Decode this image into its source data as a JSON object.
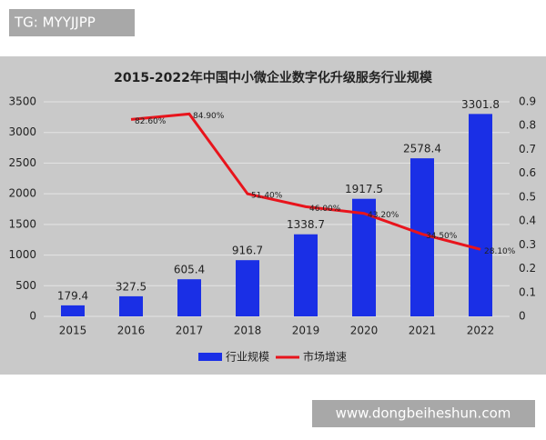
{
  "header_badge": "TG: MYYJJPP",
  "footer_badge": "www.dongbeiheshun.com",
  "chart_data": {
    "type": "bar",
    "title": "2015-2022年中国中小微企业数字化升级服务行业规模",
    "categories": [
      "2015",
      "2016",
      "2017",
      "2018",
      "2019",
      "2020",
      "2021",
      "2022"
    ],
    "series": [
      {
        "name": "行业规模",
        "type": "bar",
        "color": "#1a2fe6",
        "values": [
          179.4,
          327.5,
          605.4,
          916.7,
          1338.7,
          1917.5,
          2578.4,
          3301.8
        ]
      },
      {
        "name": "市场增速",
        "type": "line",
        "axis": "y2",
        "color": "#e8141c",
        "values": [
          null,
          0.826,
          0.849,
          0.514,
          0.46,
          0.432,
          0.345,
          0.281
        ],
        "value_labels": [
          null,
          "82.60%",
          "84.90%",
          "51.40%",
          "46.00%",
          "43.20%",
          "34.50%",
          "28.10%"
        ]
      }
    ],
    "ylim": [
      0,
      3500
    ],
    "yticks": [
      0,
      500,
      1000,
      1500,
      2000,
      2500,
      3000,
      3500
    ],
    "y2lim": [
      0,
      0.9
    ],
    "y2ticks": [
      0,
      0.1,
      0.2,
      0.3,
      0.4,
      0.5,
      0.6,
      0.7,
      0.8,
      0.9
    ],
    "grid": true
  }
}
